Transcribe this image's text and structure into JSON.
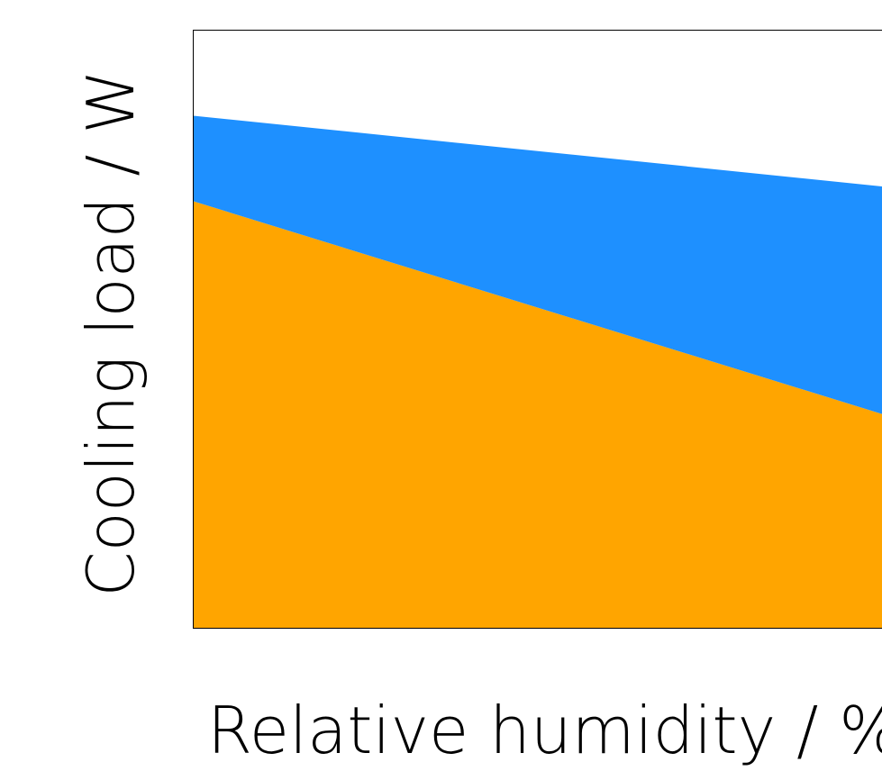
{
  "chart_data": {
    "type": "area",
    "stacked": true,
    "title": "",
    "xlabel": "Relative humidity / %",
    "ylabel": "Cooling load / W",
    "x": [
      0,
      1
    ],
    "xlim": [
      0,
      1
    ],
    "ylim": [
      0,
      1
    ],
    "series": [
      {
        "values": [
          0.714,
          0.302
        ],
        "color": "#FFA500"
      },
      {
        "values": [
          0.143,
          0.418
        ],
        "color": "#1E90FF"
      }
    ],
    "grid": false,
    "legend": "none",
    "tick_labels": false
  }
}
